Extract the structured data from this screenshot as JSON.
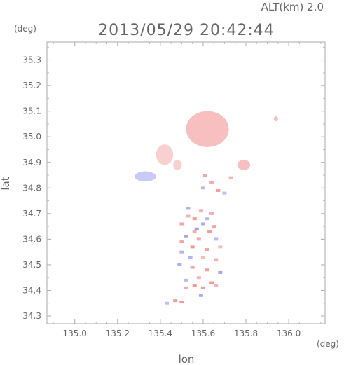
{
  "chart_data": {
    "type": "heatmap",
    "title": "2013/05/29 20:42:44",
    "subtitle": "ALT(km) 2.0",
    "xlabel": "lon",
    "ylabel": "lat",
    "xunit": "(deg)",
    "yunit": "(deg)",
    "xlim": [
      134.87,
      136.17
    ],
    "ylim": [
      34.27,
      35.37
    ],
    "xticks": [
      "135.0",
      "135.2",
      "135.4",
      "135.6",
      "135.8",
      "136.0"
    ],
    "xtick_values": [
      135.0,
      135.2,
      135.4,
      135.6,
      135.8,
      136.0
    ],
    "yticks": [
      "34.3",
      "34.4",
      "34.5",
      "34.6",
      "34.7",
      "34.8",
      "34.9",
      "35.0",
      "35.1",
      "35.2",
      "35.3"
    ],
    "ytick_values": [
      34.3,
      34.4,
      34.5,
      34.6,
      34.7,
      34.8,
      34.9,
      35.0,
      35.1,
      35.2,
      35.3
    ],
    "grid": false,
    "colors": {
      "positive": "#f08a8a",
      "negative": "#8a8af0",
      "axis": "#aaaaaa"
    },
    "regions": [
      {
        "lon": 135.62,
        "lat": 35.03,
        "rlon": 0.1,
        "rlat": 0.07,
        "tone": "red",
        "alpha": 0.55
      },
      {
        "lon": 135.42,
        "lat": 34.93,
        "rlon": 0.04,
        "rlat": 0.04,
        "tone": "red",
        "alpha": 0.4
      },
      {
        "lon": 135.48,
        "lat": 34.89,
        "rlon": 0.02,
        "rlat": 0.02,
        "tone": "red",
        "alpha": 0.4
      },
      {
        "lon": 135.33,
        "lat": 34.845,
        "rlon": 0.05,
        "rlat": 0.02,
        "tone": "blue",
        "alpha": 0.45
      },
      {
        "lon": 135.79,
        "lat": 34.89,
        "rlon": 0.03,
        "rlat": 0.02,
        "tone": "red",
        "alpha": 0.55
      },
      {
        "lon": 135.94,
        "lat": 35.07,
        "rlon": 0.01,
        "rlat": 0.01,
        "tone": "red",
        "alpha": 0.55
      }
    ],
    "cells": [
      {
        "lon": 135.64,
        "lat": 34.82,
        "v": 0.6
      },
      {
        "lon": 135.6,
        "lat": 34.8,
        "v": -0.4
      },
      {
        "lon": 135.67,
        "lat": 34.79,
        "v": 0.8
      },
      {
        "lon": 135.61,
        "lat": 34.85,
        "v": 0.7
      },
      {
        "lon": 135.73,
        "lat": 34.84,
        "v": 0.5
      },
      {
        "lon": 135.7,
        "lat": 34.78,
        "v": -0.3
      },
      {
        "lon": 135.53,
        "lat": 34.72,
        "v": -0.5
      },
      {
        "lon": 135.56,
        "lat": 34.68,
        "v": 0.9
      },
      {
        "lon": 135.5,
        "lat": 34.66,
        "v": 0.7
      },
      {
        "lon": 135.6,
        "lat": 34.66,
        "v": -0.6
      },
      {
        "lon": 135.63,
        "lat": 34.63,
        "v": 0.8
      },
      {
        "lon": 135.52,
        "lat": 34.61,
        "v": -0.7
      },
      {
        "lon": 135.58,
        "lat": 34.6,
        "v": 0.6
      },
      {
        "lon": 135.66,
        "lat": 34.6,
        "v": -0.4
      },
      {
        "lon": 135.55,
        "lat": 34.57,
        "v": 0.9
      },
      {
        "lon": 135.62,
        "lat": 34.56,
        "v": 0.7
      },
      {
        "lon": 135.5,
        "lat": 34.55,
        "v": -0.5
      },
      {
        "lon": 135.68,
        "lat": 34.57,
        "v": 0.4
      },
      {
        "lon": 135.57,
        "lat": 34.64,
        "v": -0.8
      },
      {
        "lon": 135.53,
        "lat": 34.69,
        "v": 0.5
      },
      {
        "lon": 135.64,
        "lat": 34.7,
        "v": 0.6
      },
      {
        "lon": 135.49,
        "lat": 34.5,
        "v": -0.6
      },
      {
        "lon": 135.55,
        "lat": 34.49,
        "v": 0.7
      },
      {
        "lon": 135.62,
        "lat": 34.48,
        "v": 0.8
      },
      {
        "lon": 135.68,
        "lat": 34.47,
        "v": -0.7
      },
      {
        "lon": 135.58,
        "lat": 34.45,
        "v": 0.5
      },
      {
        "lon": 135.52,
        "lat": 34.44,
        "v": -0.4
      },
      {
        "lon": 135.64,
        "lat": 34.43,
        "v": 0.9
      },
      {
        "lon": 135.56,
        "lat": 34.42,
        "v": 0.9
      },
      {
        "lon": 135.6,
        "lat": 34.41,
        "v": 0.8
      },
      {
        "lon": 135.52,
        "lat": 34.41,
        "v": 0.6
      },
      {
        "lon": 135.66,
        "lat": 34.42,
        "v": 0.5
      },
      {
        "lon": 135.59,
        "lat": 34.38,
        "v": -0.6
      },
      {
        "lon": 135.47,
        "lat": 34.36,
        "v": 0.8
      },
      {
        "lon": 135.5,
        "lat": 34.355,
        "v": 0.9
      },
      {
        "lon": 135.43,
        "lat": 34.35,
        "v": -0.3
      },
      {
        "lon": 135.66,
        "lat": 34.52,
        "v": 0.6
      },
      {
        "lon": 135.54,
        "lat": 34.53,
        "v": -0.5
      },
      {
        "lon": 135.6,
        "lat": 34.53,
        "v": 0.4
      },
      {
        "lon": 135.5,
        "lat": 34.59,
        "v": 0.7
      },
      {
        "lon": 135.56,
        "lat": 34.63,
        "v": 0.6
      },
      {
        "lon": 135.62,
        "lat": 34.68,
        "v": -0.4
      },
      {
        "lon": 135.59,
        "lat": 34.71,
        "v": 0.5
      },
      {
        "lon": 135.65,
        "lat": 34.65,
        "v": 0.7
      }
    ]
  }
}
